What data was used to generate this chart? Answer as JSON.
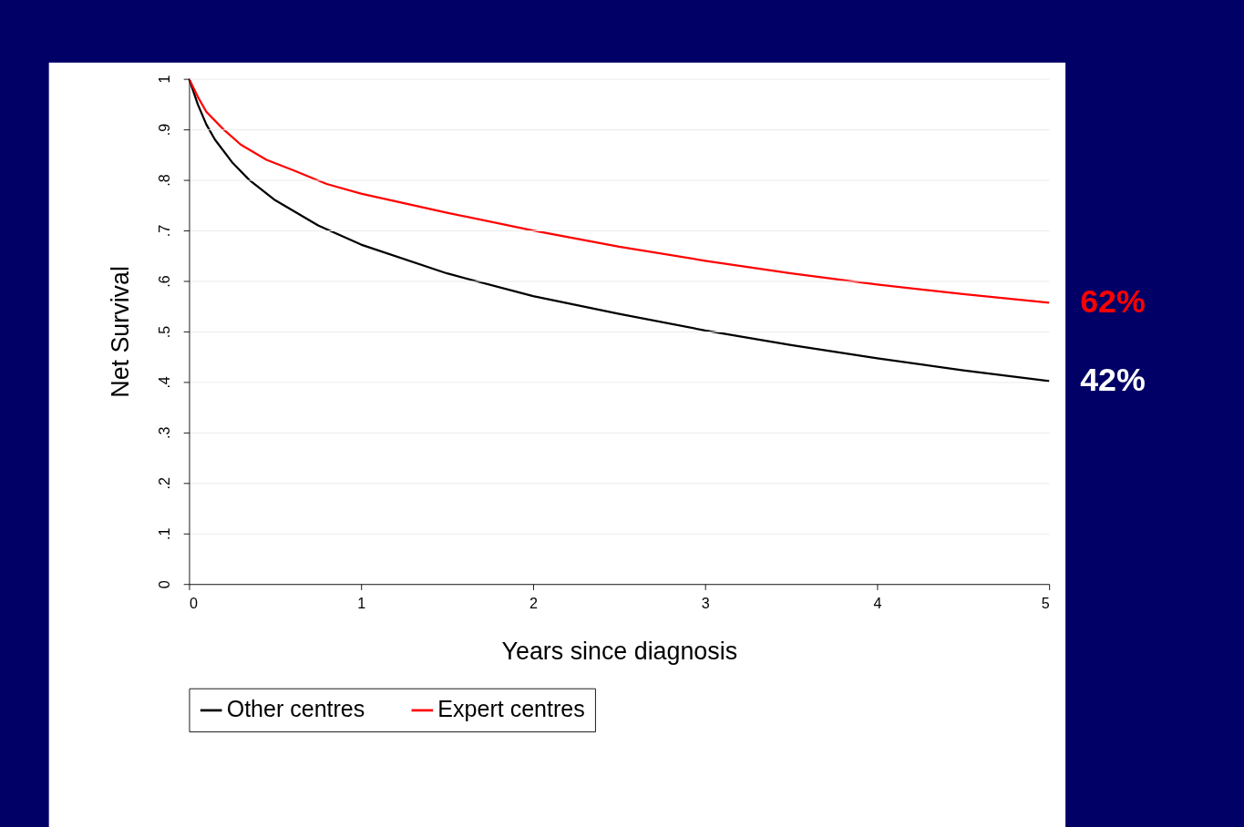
{
  "chart_data": {
    "type": "line",
    "xlabel": "Years since diagnosis",
    "ylabel": "Net Survival",
    "xlim": [
      0,
      5
    ],
    "xticks": [
      0,
      1,
      2,
      3,
      4,
      5
    ],
    "ylim": [
      0,
      1
    ],
    "yticks": [
      0,
      {
        "value": 0.1,
        "label": ".1"
      },
      {
        "value": 0.2,
        "label": ".2"
      },
      {
        "value": 0.3,
        "label": ".3"
      },
      {
        "value": 0.4,
        "label": ".4"
      },
      {
        "value": 0.5,
        "label": ".5"
      },
      {
        "value": 0.6,
        "label": ".6"
      },
      {
        "value": 0.7,
        "label": ".7"
      },
      {
        "value": 0.8,
        "label": ".8"
      },
      {
        "value": 0.9,
        "label": ".9"
      },
      1
    ],
    "grid": "y",
    "legend": "bottom",
    "marker": "none",
    "line_style": "solid",
    "series": [
      {
        "name": "Other centres",
        "color": "#000000",
        "x": [
          0,
          0.05,
          0.1,
          0.15,
          0.25,
          0.35,
          0.5,
          0.75,
          1,
          1.5,
          2,
          2.5,
          3,
          3.5,
          4,
          4.5,
          5
        ],
        "values": [
          1,
          0.95,
          0.91,
          0.88,
          0.835,
          0.8,
          0.76,
          0.71,
          0.672,
          0.615,
          0.57,
          0.535,
          0.502,
          0.473,
          0.447,
          0.423,
          0.402
        ]
      },
      {
        "name": "Expert centres",
        "color": "#ff0000",
        "x": [
          0,
          0.05,
          0.1,
          0.2,
          0.3,
          0.45,
          0.6,
          0.8,
          1,
          1.5,
          2,
          2.5,
          3,
          3.5,
          4,
          4.5,
          5
        ],
        "values": [
          1,
          0.965,
          0.935,
          0.9,
          0.87,
          0.84,
          0.82,
          0.792,
          0.773,
          0.735,
          0.7,
          0.668,
          0.64,
          0.615,
          0.593,
          0.574,
          0.557
        ]
      }
    ],
    "annotations": [
      {
        "text": "62%",
        "x": 5,
        "y": 0.557
      },
      {
        "text": "42%",
        "x": 5,
        "y": 0.402
      }
    ]
  }
}
